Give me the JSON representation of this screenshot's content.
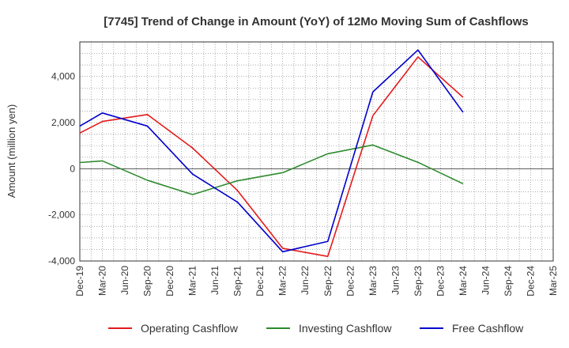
{
  "chart_data": {
    "type": "line",
    "title": "[7745]  Trend of Change in Amount (YoY) of 12Mo Moving Sum of Cashflows",
    "xlabel": "",
    "ylabel": "Amount (million yen)",
    "ylim": [
      -4000,
      5500
    ],
    "yticks": [
      -4000,
      -2000,
      0,
      2000,
      4000
    ],
    "ytick_labels": [
      "-4,000",
      "-2,000",
      "0",
      "2,000",
      "4,000"
    ],
    "grid": true,
    "legend_position": "bottom",
    "categories": [
      "Dec-19",
      "Mar-20",
      "Jun-20",
      "Sep-20",
      "Dec-20",
      "Mar-21",
      "Jun-21",
      "Sep-21",
      "Dec-21",
      "Mar-22",
      "Jun-22",
      "Sep-22",
      "Dec-22",
      "Mar-23",
      "Jun-23",
      "Sep-23",
      "Dec-23",
      "Mar-24",
      "Jun-24",
      "Sep-24",
      "Dec-24",
      "Mar-25"
    ],
    "series": [
      {
        "name": "Operating Cashflow",
        "color": "#e31a1c",
        "values": [
          1550,
          2050,
          null,
          2350,
          null,
          900,
          null,
          -950,
          null,
          -3450,
          null,
          -3800,
          null,
          2300,
          null,
          4850,
          null,
          3100,
          null,
          null,
          null,
          null
        ]
      },
      {
        "name": "Investing Cashflow",
        "color": "#2e8b2e",
        "values": [
          270,
          340,
          null,
          -500,
          null,
          -1120,
          null,
          -520,
          null,
          -170,
          null,
          650,
          null,
          1030,
          null,
          280,
          null,
          -650,
          null,
          null,
          null,
          null
        ]
      },
      {
        "name": "Free Cashflow",
        "color": "#0000cc",
        "values": [
          1850,
          2420,
          null,
          1850,
          null,
          -230,
          null,
          -1450,
          null,
          -3600,
          null,
          -3150,
          null,
          3330,
          null,
          5150,
          null,
          2450,
          null,
          null,
          null,
          null
        ]
      }
    ]
  }
}
